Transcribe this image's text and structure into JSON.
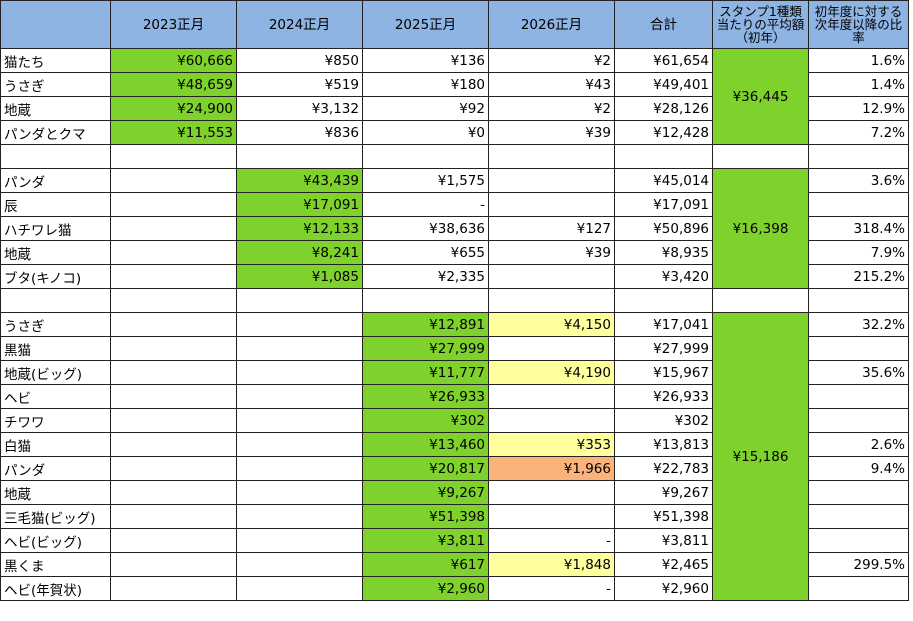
{
  "table": {
    "header": [
      "2023正月",
      "2024正月",
      "2025正月",
      "2026正月",
      "合計",
      "スタンプ1種類当たりの平均額（初年）",
      "初年度に対する次年度以降の比率"
    ],
    "header_color": "#8eb4e3",
    "groups": [
      {
        "average": "¥36,445",
        "average_fill": "#7fd12b",
        "rows": [
          {
            "label": "猫たち",
            "values": [
              "¥60,666",
              "¥850",
              "¥136",
              "¥2",
              "¥61,654",
              "1.6%"
            ],
            "fills": [
              "#7fd12b",
              null,
              null,
              null,
              null,
              null
            ]
          },
          {
            "label": "うさぎ",
            "values": [
              "¥48,659",
              "¥519",
              "¥180",
              "¥43",
              "¥49,401",
              "1.4%"
            ],
            "fills": [
              "#7fd12b",
              null,
              null,
              null,
              null,
              null
            ]
          },
          {
            "label": "地蔵",
            "values": [
              "¥24,900",
              "¥3,132",
              "¥92",
              "¥2",
              "¥28,126",
              "12.9%"
            ],
            "fills": [
              "#7fd12b",
              null,
              null,
              null,
              null,
              null
            ]
          },
          {
            "label": "パンダとクマ",
            "values": [
              "¥11,553",
              "¥836",
              "¥0",
              "¥39",
              "¥12,428",
              "7.2%"
            ],
            "fills": [
              "#7fd12b",
              null,
              null,
              null,
              null,
              null
            ]
          }
        ]
      },
      {
        "average": "¥16,398",
        "average_fill": "#7fd12b",
        "rows": [
          {
            "label": "パンダ",
            "values": [
              null,
              "¥43,439",
              "¥1,575",
              null,
              "¥45,014",
              "3.6%"
            ],
            "fills": [
              null,
              "#7fd12b",
              null,
              null,
              null,
              null
            ]
          },
          {
            "label": "辰",
            "values": [
              null,
              "¥17,091",
              "-",
              null,
              "¥17,091",
              null
            ],
            "fills": [
              null,
              "#7fd12b",
              null,
              null,
              null,
              null
            ]
          },
          {
            "label": "ハチワレ猫",
            "values": [
              null,
              "¥12,133",
              "¥38,636",
              "¥127",
              "¥50,896",
              "318.4%"
            ],
            "fills": [
              null,
              "#7fd12b",
              null,
              null,
              null,
              null
            ]
          },
          {
            "label": "地蔵",
            "values": [
              null,
              "¥8,241",
              "¥655",
              "¥39",
              "¥8,935",
              "7.9%"
            ],
            "fills": [
              null,
              "#7fd12b",
              null,
              null,
              null,
              null
            ]
          },
          {
            "label": "ブタ(キノコ)",
            "values": [
              null,
              "¥1,085",
              "¥2,335",
              null,
              "¥3,420",
              "215.2%"
            ],
            "fills": [
              null,
              "#7fd12b",
              null,
              null,
              null,
              null
            ]
          }
        ]
      },
      {
        "average": "¥15,186",
        "average_fill": "#7fd12b",
        "rows": [
          {
            "label": "うさぎ",
            "values": [
              null,
              null,
              "¥12,891",
              "¥4,150",
              "¥17,041",
              "32.2%"
            ],
            "fills": [
              null,
              null,
              "#7fd12b",
              "#ffff9e",
              null,
              null
            ]
          },
          {
            "label": "黒猫",
            "values": [
              null,
              null,
              "¥27,999",
              null,
              "¥27,999",
              null
            ],
            "fills": [
              null,
              null,
              "#7fd12b",
              null,
              null,
              null
            ]
          },
          {
            "label": "地蔵(ビッグ)",
            "values": [
              null,
              null,
              "¥11,777",
              "¥4,190",
              "¥15,967",
              "35.6%"
            ],
            "fills": [
              null,
              null,
              "#7fd12b",
              "#ffff9e",
              null,
              null
            ]
          },
          {
            "label": "ヘビ",
            "values": [
              null,
              null,
              "¥26,933",
              null,
              "¥26,933",
              null
            ],
            "fills": [
              null,
              null,
              "#7fd12b",
              null,
              null,
              null
            ]
          },
          {
            "label": "チワワ",
            "values": [
              null,
              null,
              "¥302",
              null,
              "¥302",
              null
            ],
            "fills": [
              null,
              null,
              "#7fd12b",
              null,
              null,
              null
            ]
          },
          {
            "label": "白猫",
            "values": [
              null,
              null,
              "¥13,460",
              "¥353",
              "¥13,813",
              "2.6%"
            ],
            "fills": [
              null,
              null,
              "#7fd12b",
              "#ffff9e",
              null,
              null
            ]
          },
          {
            "label": "パンダ",
            "values": [
              null,
              null,
              "¥20,817",
              "¥1,966",
              "¥22,783",
              "9.4%"
            ],
            "fills": [
              null,
              null,
              "#7fd12b",
              "#fbb37b",
              null,
              null
            ]
          },
          {
            "label": "地蔵",
            "values": [
              null,
              null,
              "¥9,267",
              null,
              "¥9,267",
              null
            ],
            "fills": [
              null,
              null,
              "#7fd12b",
              null,
              null,
              null
            ]
          },
          {
            "label": "三毛猫(ビッグ)",
            "values": [
              null,
              null,
              "¥51,398",
              null,
              "¥51,398",
              null
            ],
            "fills": [
              null,
              null,
              "#7fd12b",
              null,
              null,
              null
            ]
          },
          {
            "label": "ヘビ(ビッグ)",
            "values": [
              null,
              null,
              "¥3,811",
              "-",
              "¥3,811",
              null
            ],
            "fills": [
              null,
              null,
              "#7fd12b",
              null,
              null,
              null
            ]
          },
          {
            "label": "黒くま",
            "values": [
              null,
              null,
              "¥617",
              "¥1,848",
              "¥2,465",
              "299.5%"
            ],
            "fills": [
              null,
              null,
              "#7fd12b",
              "#ffff9e",
              null,
              null
            ]
          },
          {
            "label": "ヘビ(年賀状)",
            "values": [
              null,
              null,
              "¥2,960",
              "-",
              "¥2,960",
              null
            ],
            "fills": [
              null,
              null,
              "#7fd12b",
              null,
              null,
              null
            ]
          }
        ]
      }
    ]
  }
}
